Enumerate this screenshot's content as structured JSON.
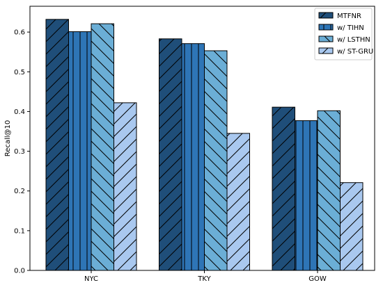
{
  "chart_data": {
    "type": "bar",
    "title": "",
    "xlabel": "",
    "ylabel": "Recall@10",
    "categories": [
      "NYC",
      "TKY",
      "GOW"
    ],
    "ylim": [
      0,
      0.665
    ],
    "yticks": [
      0.0,
      0.1,
      0.2,
      0.3,
      0.4,
      0.5,
      0.6
    ],
    "grid": false,
    "legend_position": "top-right",
    "series": [
      {
        "name": "MTFNR",
        "values": [
          0.632,
          0.583,
          0.411
        ],
        "color": "#1f4e79",
        "hatch": "slash"
      },
      {
        "name": "w/ TIHN",
        "values": [
          0.601,
          0.571,
          0.377
        ],
        "color": "#2e75b6",
        "hatch": "vertical"
      },
      {
        "name": "w/ LSTHN",
        "values": [
          0.621,
          0.553,
          0.402
        ],
        "color": "#6baed6",
        "hatch": "backslash"
      },
      {
        "name": "w/ ST-GRU",
        "values": [
          0.422,
          0.345,
          0.221
        ],
        "color": "#a9c8ef",
        "hatch": "slash"
      }
    ]
  }
}
